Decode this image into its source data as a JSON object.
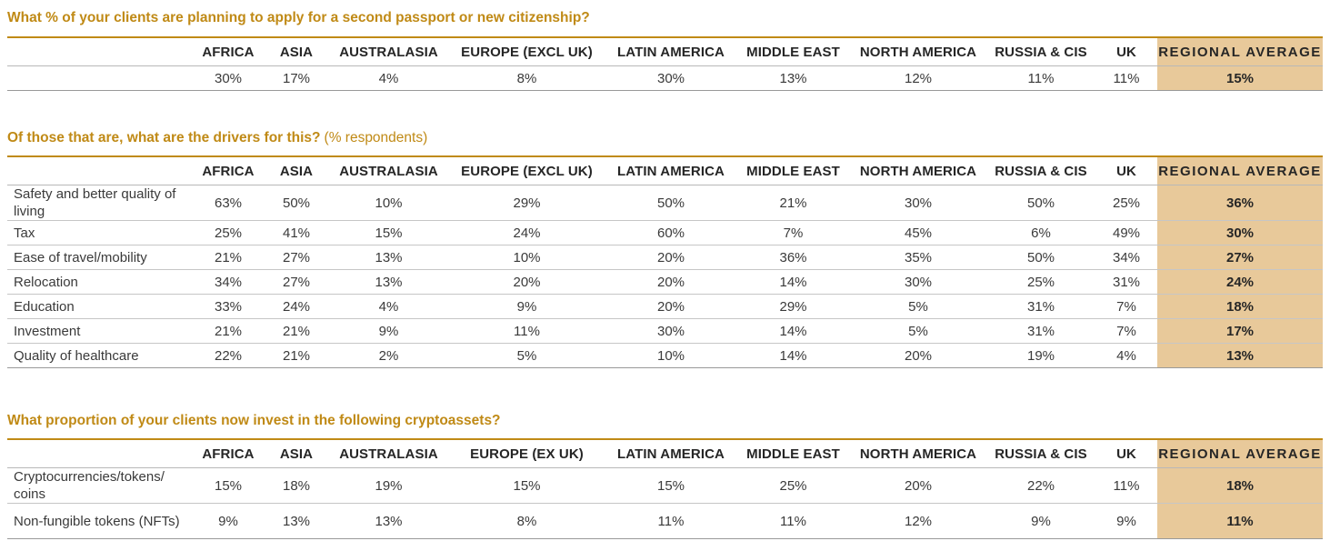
{
  "colors": {
    "accent": "#c08a16",
    "highlight": "#e8c99a"
  },
  "q1": {
    "title": "What % of your clients are planning to apply for a second passport or new citizenship?",
    "headers": [
      "AFRICA",
      "ASIA",
      "AUSTRALASIA",
      "EUROPE (EXCL UK)",
      "LATIN AMERICA",
      "MIDDLE EAST",
      "NORTH AMERICA",
      "RUSSIA & CIS",
      "UK",
      "REGIONAL AVERAGE"
    ],
    "rows": [
      {
        "label": "",
        "values": [
          "30%",
          "17%",
          "4%",
          "8%",
          "30%",
          "13%",
          "12%",
          "11%",
          "11%",
          "15%"
        ]
      }
    ]
  },
  "q2": {
    "title": "Of those that are, what are the drivers for this?",
    "subtitle": "(% respondents)",
    "headers": [
      "AFRICA",
      "ASIA",
      "AUSTRALASIA",
      "EUROPE (EXCL UK)",
      "LATIN AMERICA",
      "MIDDLE EAST",
      "NORTH AMERICA",
      "RUSSIA & CIS",
      "UK",
      "REGIONAL AVERAGE"
    ],
    "rows": [
      {
        "label": "Safety and better quality of living",
        "values": [
          "63%",
          "50%",
          "10%",
          "29%",
          "50%",
          "21%",
          "30%",
          "50%",
          "25%",
          "36%"
        ]
      },
      {
        "label": "Tax",
        "values": [
          "25%",
          "41%",
          "15%",
          "24%",
          "60%",
          "7%",
          "45%",
          "6%",
          "49%",
          "30%"
        ]
      },
      {
        "label": "Ease of travel/mobility",
        "values": [
          "21%",
          "27%",
          "13%",
          "10%",
          "20%",
          "36%",
          "35%",
          "50%",
          "34%",
          "27%"
        ]
      },
      {
        "label": "Relocation",
        "values": [
          "34%",
          "27%",
          "13%",
          "20%",
          "20%",
          "14%",
          "30%",
          "25%",
          "31%",
          "24%"
        ]
      },
      {
        "label": "Education",
        "values": [
          "33%",
          "24%",
          "4%",
          "9%",
          "20%",
          "29%",
          "5%",
          "31%",
          "7%",
          "18%"
        ]
      },
      {
        "label": "Investment",
        "values": [
          "21%",
          "21%",
          "9%",
          "11%",
          "30%",
          "14%",
          "5%",
          "31%",
          "7%",
          "17%"
        ]
      },
      {
        "label": "Quality of healthcare",
        "values": [
          "22%",
          "21%",
          "2%",
          "5%",
          "10%",
          "14%",
          "20%",
          "19%",
          "4%",
          "13%"
        ]
      }
    ]
  },
  "q3": {
    "title": "What proportion of your clients now invest in the following cryptoassets?",
    "headers": [
      "AFRICA",
      "ASIA",
      "AUSTRALASIA",
      "EUROPE (EX UK)",
      "LATIN AMERICA",
      "MIDDLE EAST",
      "NORTH AMERICA",
      "RUSSIA & CIS",
      "UK",
      "REGIONAL AVERAGE"
    ],
    "rows": [
      {
        "label": "Cryptocurrencies/tokens/ coins",
        "values": [
          "15%",
          "18%",
          "19%",
          "15%",
          "15%",
          "25%",
          "20%",
          "22%",
          "11%",
          "18%"
        ]
      },
      {
        "label": "Non-fungible tokens (NFTs)",
        "values": [
          "9%",
          "13%",
          "13%",
          "8%",
          "11%",
          "11%",
          "12%",
          "9%",
          "9%",
          "11%"
        ]
      }
    ]
  }
}
